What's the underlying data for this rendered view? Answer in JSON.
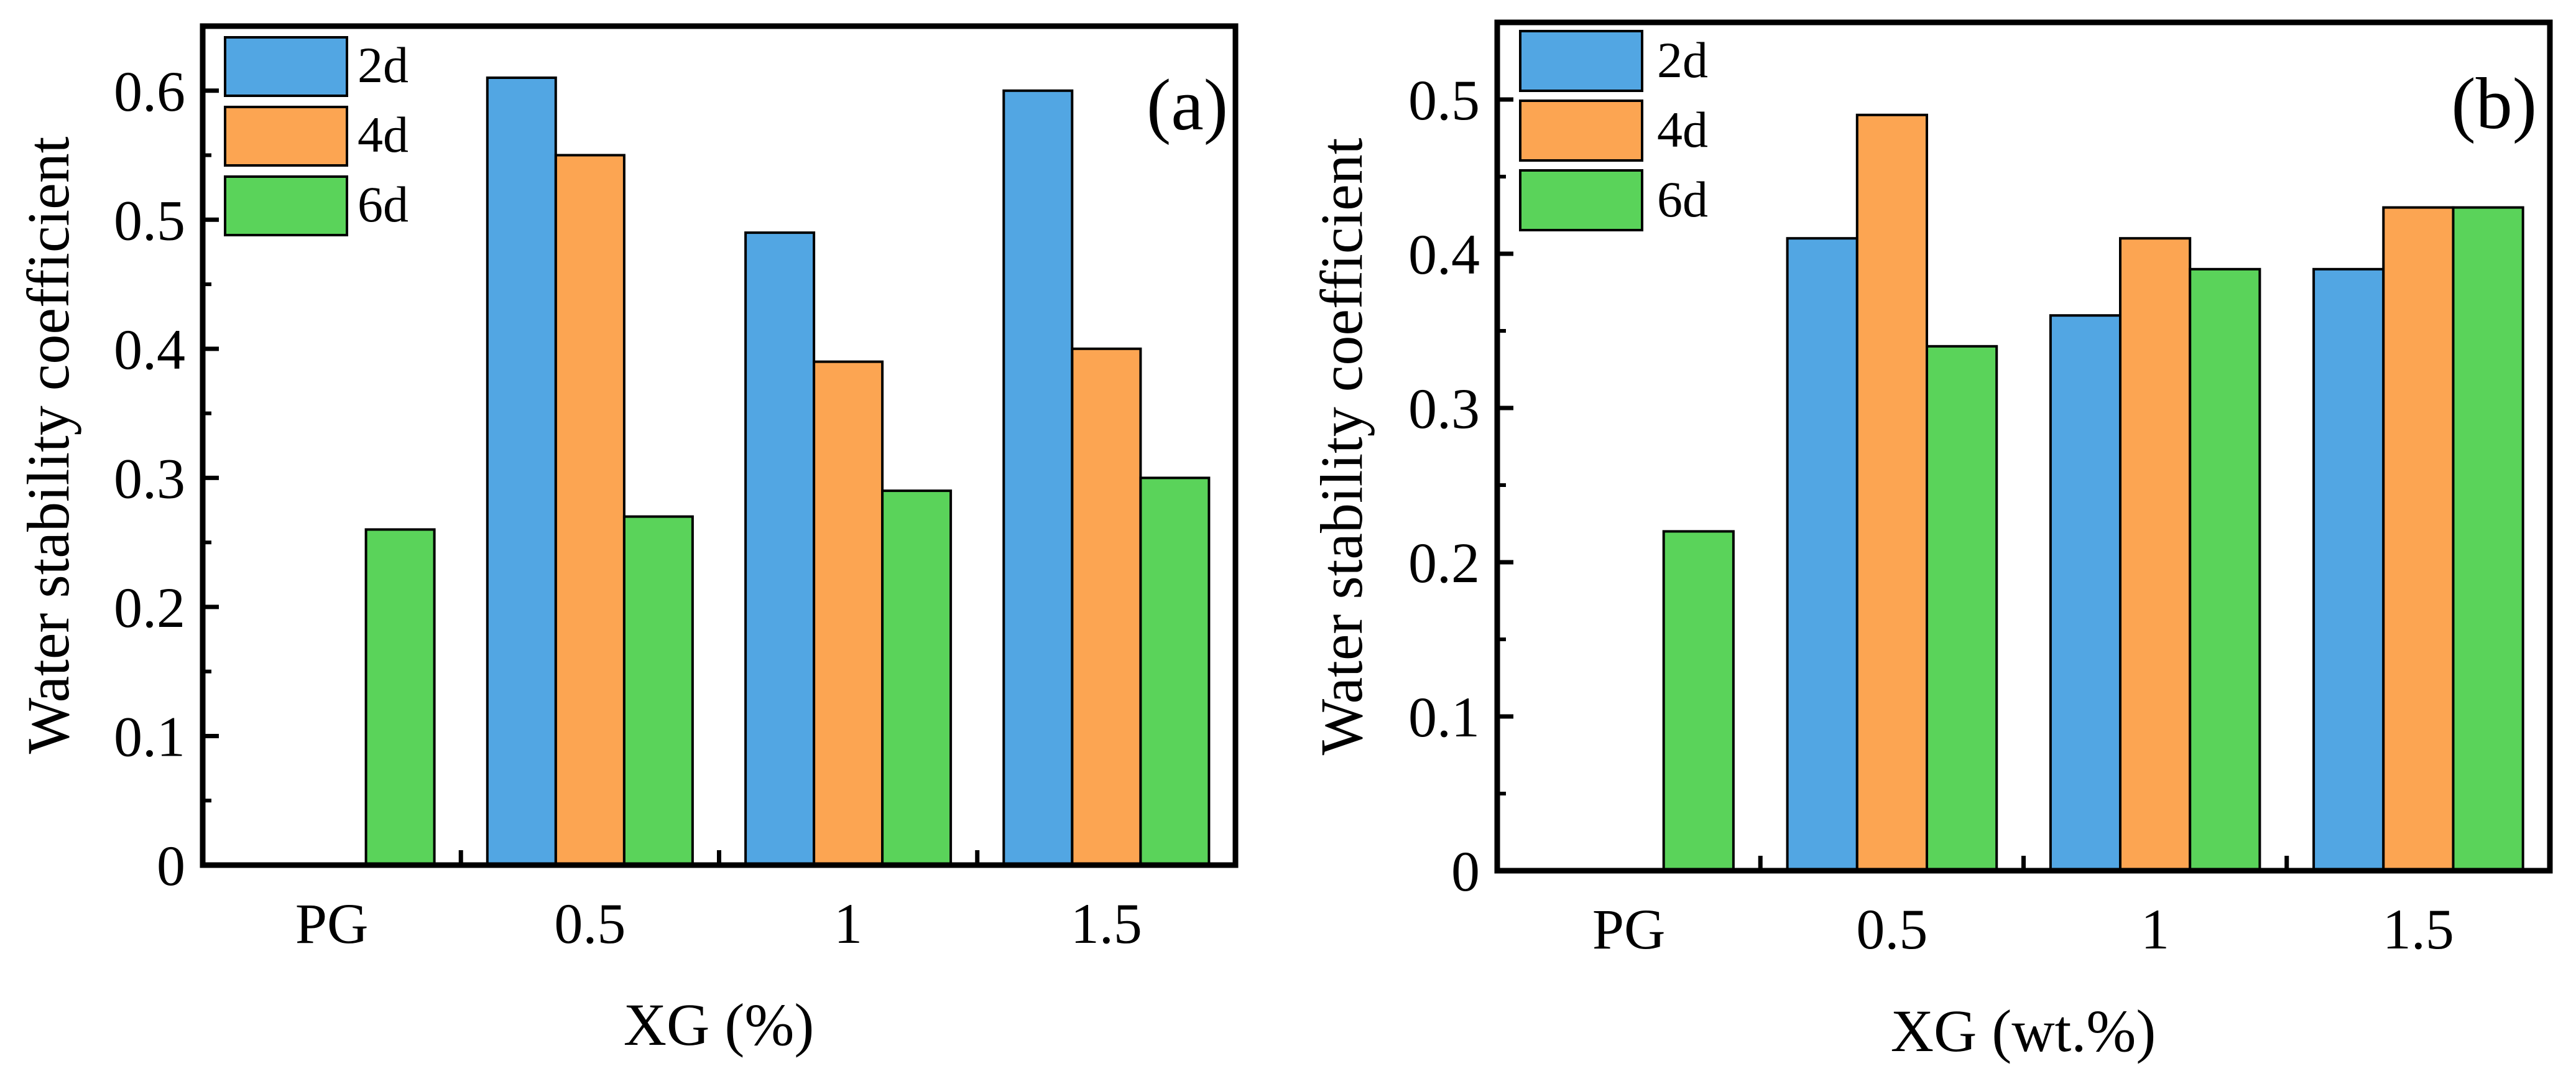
{
  "colors": {
    "series": [
      "#52A6E3",
      "#FCA552",
      "#5AD35A"
    ],
    "axis": "#000000",
    "bar_edge": "#000000",
    "background": "#FFFFFF"
  },
  "chart_data": [
    {
      "type": "bar",
      "panel_label": "(a)",
      "title": "",
      "xlabel": "XG (%)",
      "ylabel": "Water stability coefficient",
      "categories": [
        "PG",
        "0.5",
        "1",
        "1.5"
      ],
      "series": [
        {
          "name": "2d",
          "values": [
            0,
            0.61,
            0.49,
            0.6
          ]
        },
        {
          "name": "4d",
          "values": [
            0,
            0.55,
            0.39,
            0.4
          ]
        },
        {
          "name": "6d",
          "values": [
            0.26,
            0.27,
            0.29,
            0.3
          ]
        }
      ],
      "ylim": [
        0,
        0.65
      ],
      "yticks": [
        0,
        0.1,
        0.2,
        0.3,
        0.4,
        0.5,
        0.6
      ],
      "ytick_labels": [
        "0",
        "0.1",
        "0.2",
        "0.3",
        "0.4",
        "0.5",
        "0.6"
      ],
      "grid": false,
      "legend_position": "top-left"
    },
    {
      "type": "bar",
      "panel_label": "(b)",
      "title": "",
      "xlabel": "XG (wt.%)",
      "ylabel": "Water stability coefficient",
      "categories": [
        "PG",
        "0.5",
        "1",
        "1.5"
      ],
      "series": [
        {
          "name": "2d",
          "values": [
            0,
            0.41,
            0.36,
            0.39
          ]
        },
        {
          "name": "4d",
          "values": [
            0,
            0.49,
            0.41,
            0.43
          ]
        },
        {
          "name": "6d",
          "values": [
            0.22,
            0.34,
            0.39,
            0.43
          ]
        }
      ],
      "ylim": [
        0,
        0.55
      ],
      "yticks": [
        0,
        0.1,
        0.2,
        0.3,
        0.4,
        0.5
      ],
      "ytick_labels": [
        "0",
        "0.1",
        "0.2",
        "0.3",
        "0.4",
        "0.5"
      ],
      "grid": false,
      "legend_position": "top-left"
    }
  ]
}
